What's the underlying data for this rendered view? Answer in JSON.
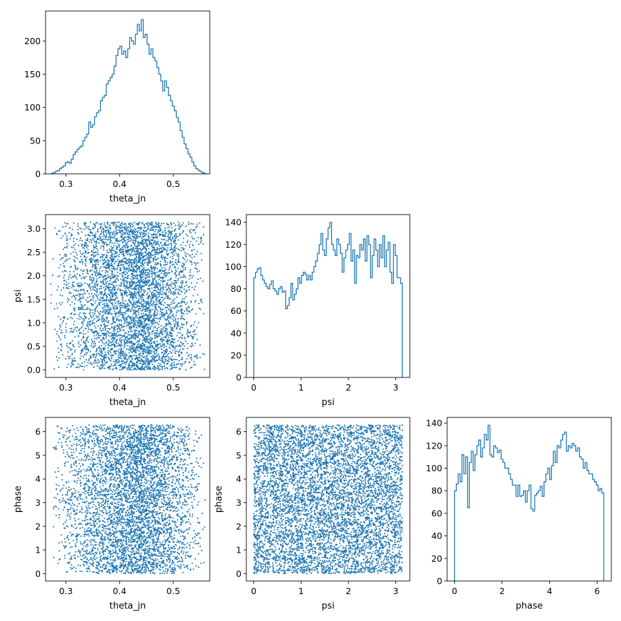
{
  "colors": {
    "series": "#1f77b4",
    "axes": "#000000",
    "background": "#ffffff"
  },
  "chart_data": [
    {
      "id": "theta_jn-hist",
      "type": "histogram",
      "xlabel": "theta_jn",
      "ylabel": "",
      "xlim": [
        0.262,
        0.568
      ],
      "ylim": [
        0,
        245
      ],
      "xticks": [
        0.3,
        0.4,
        0.5
      ],
      "yticks": [
        0,
        50,
        100,
        150,
        200
      ],
      "bin_range": [
        0.27,
        0.56
      ],
      "counts": [
        0,
        1,
        2,
        4,
        5,
        8,
        10,
        12,
        17,
        18,
        16,
        22,
        29,
        33,
        37,
        40,
        42,
        50,
        55,
        60,
        78,
        70,
        74,
        86,
        92,
        95,
        110,
        115,
        118,
        135,
        140,
        145,
        150,
        162,
        178,
        188,
        192,
        180,
        185,
        175,
        188,
        205,
        200,
        195,
        210,
        225,
        215,
        232,
        205,
        210,
        195,
        180,
        188,
        175,
        170,
        160,
        150,
        140,
        125,
        140,
        130,
        118,
        110,
        102,
        95,
        85,
        78,
        65,
        55,
        45,
        38,
        30,
        25,
        18,
        12,
        8,
        6,
        4,
        2,
        1
      ]
    },
    {
      "id": "psi-vs-theta_jn",
      "type": "scatter",
      "xlabel": "theta_jn",
      "ylabel": "psi",
      "xlim": [
        0.262,
        0.568
      ],
      "ylim": [
        -0.16,
        3.3
      ],
      "xticks": [
        0.3,
        0.4,
        0.5
      ],
      "yticks": [
        0.0,
        0.5,
        1.0,
        1.5,
        2.0,
        2.5,
        3.0
      ],
      "n_points": 5000,
      "x_distribution": {
        "kind": "triangular",
        "min": 0.27,
        "mode": 0.44,
        "max": 0.56
      },
      "y_distribution": {
        "kind": "uniform",
        "min": 0,
        "max": 3.14
      }
    },
    {
      "id": "psi-hist",
      "type": "histogram",
      "xlabel": "psi",
      "ylabel": "",
      "xlim": [
        -0.157,
        3.299
      ],
      "ylim": [
        0,
        147
      ],
      "xticks": [
        0,
        1,
        2,
        3
      ],
      "yticks": [
        0,
        20,
        40,
        60,
        80,
        100,
        120,
        140
      ],
      "bin_range": [
        0,
        3.14
      ],
      "counts": [
        90,
        95,
        98,
        99,
        92,
        88,
        85,
        82,
        80,
        84,
        87,
        80,
        78,
        75,
        80,
        82,
        77,
        78,
        62,
        65,
        72,
        85,
        70,
        75,
        80,
        90,
        85,
        92,
        95,
        93,
        88,
        92,
        88,
        95,
        100,
        105,
        112,
        120,
        130,
        115,
        110,
        125,
        135,
        140,
        120,
        115,
        110,
        125,
        120,
        112,
        95,
        108,
        115,
        120,
        130,
        105,
        115,
        85,
        110,
        108,
        120,
        115,
        125,
        105,
        128,
        120,
        90,
        110,
        125,
        115,
        100,
        120,
        108,
        128,
        100,
        115,
        122,
        95,
        85,
        120,
        110,
        90,
        90,
        85
      ]
    },
    {
      "id": "phase-vs-theta_jn",
      "type": "scatter",
      "xlabel": "theta_jn",
      "ylabel": "phase",
      "xlim": [
        0.262,
        0.568
      ],
      "ylim": [
        -0.31,
        6.6
      ],
      "xticks": [
        0.3,
        0.4,
        0.5
      ],
      "yticks": [
        0,
        1,
        2,
        3,
        4,
        5,
        6
      ],
      "n_points": 5000,
      "x_distribution": {
        "kind": "triangular",
        "min": 0.27,
        "mode": 0.44,
        "max": 0.56
      },
      "y_distribution": {
        "kind": "uniform",
        "min": 0,
        "max": 6.28
      }
    },
    {
      "id": "phase-vs-psi",
      "type": "scatter",
      "xlabel": "psi",
      "ylabel": "phase",
      "xlim": [
        -0.157,
        3.299
      ],
      "ylim": [
        -0.31,
        6.6
      ],
      "xticks": [
        0,
        1,
        2,
        3
      ],
      "yticks": [
        0,
        1,
        2,
        3,
        4,
        5,
        6
      ],
      "n_points": 6500,
      "x_distribution": {
        "kind": "uniform",
        "min": 0,
        "max": 3.14
      },
      "y_distribution": {
        "kind": "uniform",
        "min": 0,
        "max": 6.28
      }
    },
    {
      "id": "phase-hist",
      "type": "histogram",
      "xlabel": "phase",
      "ylabel": "",
      "xlim": [
        -0.31,
        6.6
      ],
      "ylim": [
        0,
        145
      ],
      "xticks": [
        0,
        2,
        4,
        6
      ],
      "yticks": [
        0,
        20,
        40,
        60,
        80,
        100,
        120,
        140
      ],
      "bin_range": [
        0,
        6.28
      ],
      "counts": [
        80,
        86,
        95,
        88,
        112,
        95,
        110,
        65,
        105,
        115,
        98,
        112,
        120,
        125,
        110,
        118,
        130,
        125,
        138,
        112,
        110,
        120,
        118,
        114,
        116,
        108,
        105,
        100,
        100,
        95,
        90,
        85,
        85,
        75,
        85,
        75,
        76,
        80,
        70,
        80,
        85,
        64,
        62,
        76,
        78,
        80,
        84,
        75,
        88,
        95,
        100,
        90,
        102,
        115,
        105,
        120,
        118,
        125,
        130,
        132,
        115,
        120,
        118,
        122,
        120,
        115,
        118,
        110,
        108,
        100,
        105,
        98,
        95,
        95,
        90,
        88,
        85,
        80,
        82,
        78
      ]
    }
  ]
}
